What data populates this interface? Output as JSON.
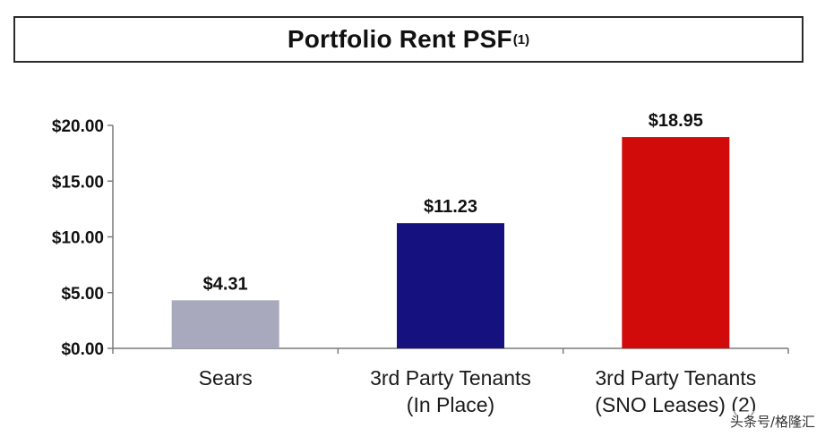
{
  "title": {
    "text": "Portfolio Rent PSF",
    "superscript": "(1)"
  },
  "chart_data": {
    "type": "bar",
    "categories": [
      [
        "Sears"
      ],
      [
        "3rd Party Tenants",
        "(In Place)"
      ],
      [
        "3rd Party Tenants",
        "(SNO Leases) (2)"
      ]
    ],
    "values": [
      4.31,
      11.23,
      18.95
    ],
    "data_labels": [
      "$4.31",
      "$11.23",
      "$18.95"
    ],
    "bar_colors": [
      "#a8a9bc",
      "#15117f",
      "#d10a0a"
    ],
    "yticks": [
      0,
      5,
      10,
      15,
      20
    ],
    "ytick_labels": [
      "$0.00",
      "$5.00",
      "$10.00",
      "$15.00",
      "$20.00"
    ],
    "ylim": [
      0,
      20
    ],
    "grid": false,
    "xlabel": "",
    "ylabel": ""
  },
  "watermark": "头条号/格隆汇"
}
